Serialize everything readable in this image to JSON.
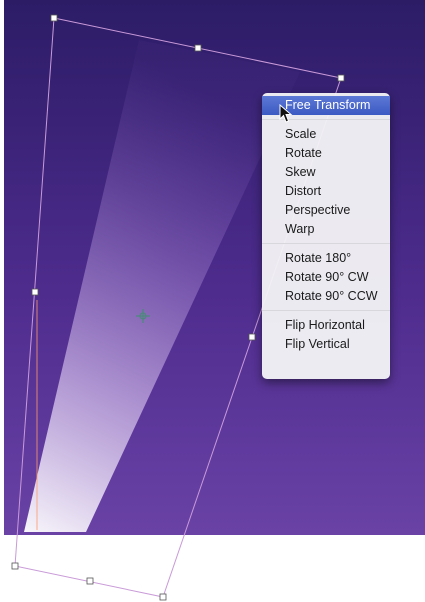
{
  "colors": {
    "background_top": "#2c1c66",
    "background_bottom": "#6740a3",
    "bounding_box_stroke": "#c99ad8",
    "menu_highlight": "#3d5bc6"
  },
  "menu": {
    "highlighted": "Free Transform",
    "groups": [
      [
        "Scale",
        "Rotate",
        "Skew",
        "Distort",
        "Perspective",
        "Warp"
      ],
      [
        "Rotate 180°",
        "Rotate 90° CW",
        "Rotate 90° CCW"
      ],
      [
        "Flip Horizontal",
        "Flip Vertical"
      ]
    ]
  }
}
